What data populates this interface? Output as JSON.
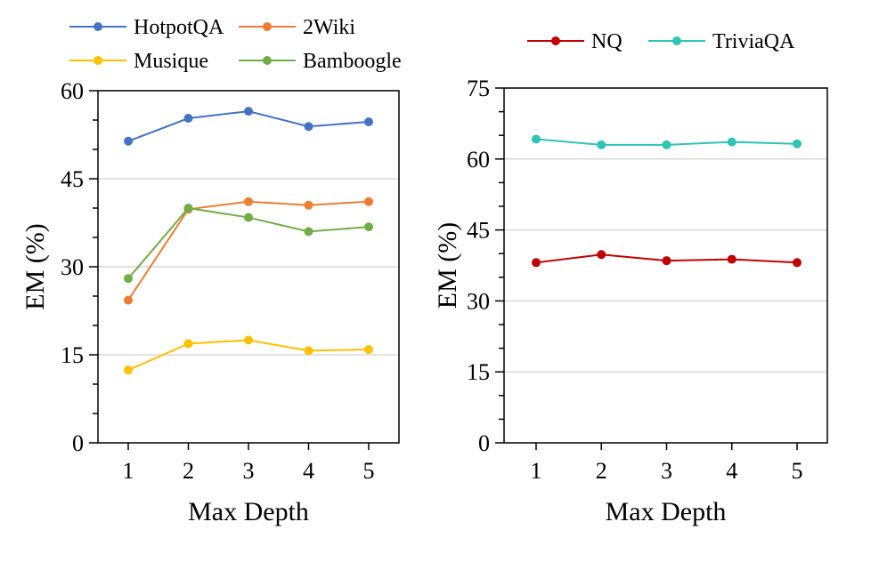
{
  "chart_data": [
    {
      "type": "line",
      "title": "",
      "xlabel": "Max Depth",
      "ylabel": "EM (%)",
      "categories": [
        "1",
        "2",
        "3",
        "4",
        "5"
      ],
      "yticks": [
        "0",
        "15",
        "30",
        "45",
        "60"
      ],
      "ylim": [
        0,
        60
      ],
      "grid": true,
      "legend_position": "top",
      "series": [
        {
          "name": "HotpotQA",
          "color": "#4472C4",
          "values": [
            51.4,
            55.3,
            56.5,
            53.9,
            54.7
          ]
        },
        {
          "name": "2Wiki",
          "color": "#ED7D31",
          "values": [
            24.3,
            39.8,
            41.1,
            40.5,
            41.1
          ]
        },
        {
          "name": "Musique",
          "color": "#FFC000",
          "values": [
            12.4,
            16.9,
            17.5,
            15.7,
            15.9
          ]
        },
        {
          "name": "Bamboogle",
          "color": "#70AD47",
          "values": [
            28.0,
            40.0,
            38.4,
            36.0,
            36.8
          ]
        }
      ]
    },
    {
      "type": "line",
      "title": "",
      "xlabel": "Max Depth",
      "ylabel": "EM (%)",
      "categories": [
        "1",
        "2",
        "3",
        "4",
        "5"
      ],
      "yticks": [
        "0",
        "15",
        "30",
        "45",
        "60",
        "75"
      ],
      "ylim": [
        0,
        75
      ],
      "grid": true,
      "legend_position": "top",
      "series": [
        {
          "name": "NQ",
          "color": "#C00000",
          "values": [
            38.1,
            39.8,
            38.5,
            38.8,
            38.1
          ]
        },
        {
          "name": "TriviaQA",
          "color": "#2EC4B6",
          "values": [
            64.2,
            63.0,
            63.0,
            63.6,
            63.2
          ]
        }
      ]
    }
  ]
}
